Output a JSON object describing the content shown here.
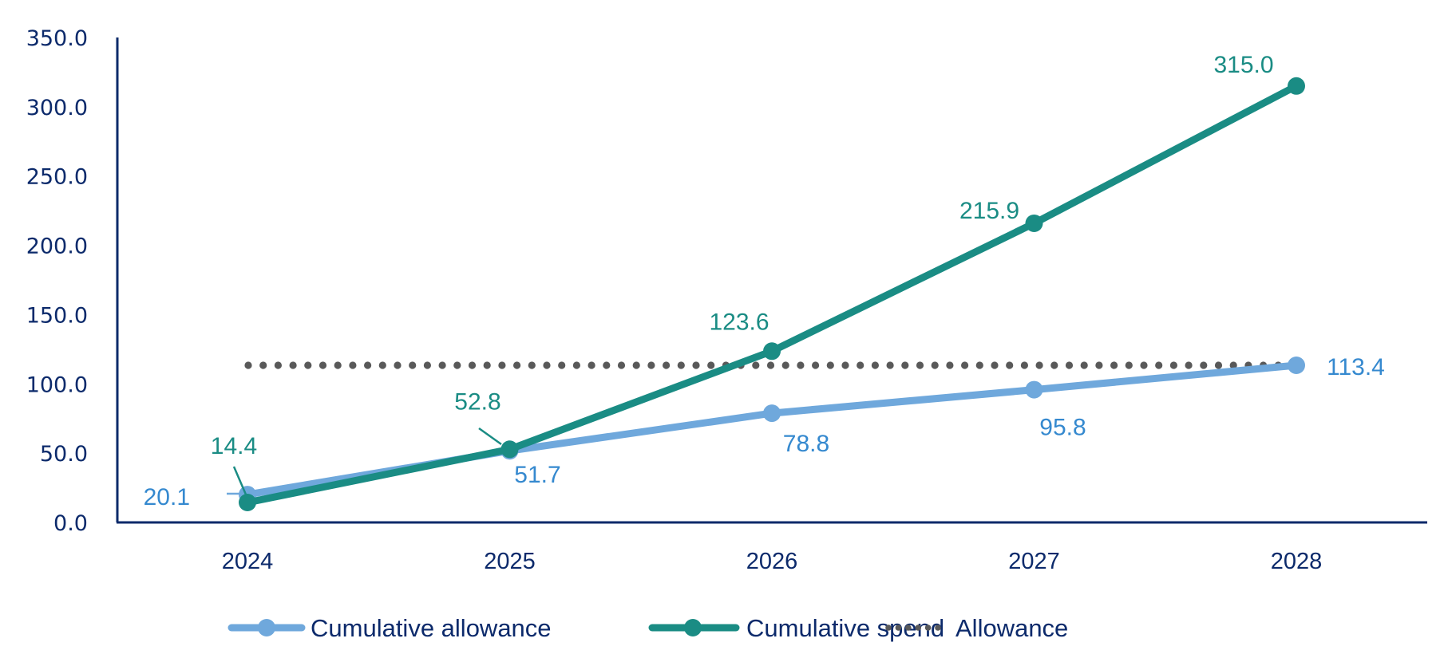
{
  "chart_data": {
    "type": "line",
    "title": "",
    "xlabel": "",
    "ylabel": "",
    "categories": [
      "2024",
      "2025",
      "2026",
      "2027",
      "2028"
    ],
    "ylim": [
      0,
      350
    ],
    "yticks": [
      "0.0",
      "50.0",
      "100.0",
      "150.0",
      "200.0",
      "250.0",
      "300.0",
      "350.0"
    ],
    "ytick_values": [
      0,
      50,
      100,
      150,
      200,
      250,
      300,
      350
    ],
    "grid": false,
    "legend_position": "bottom",
    "series": [
      {
        "name": "Cumulative allowance",
        "style": "solid-marker",
        "color": "#6FA8DC",
        "label_color": "#3589CF",
        "values": [
          20.1,
          51.7,
          78.8,
          95.8,
          113.4
        ],
        "labels": [
          "20.1",
          "51.7",
          "78.8",
          "95.8",
          "113.4"
        ]
      },
      {
        "name": "Cumulative spend",
        "style": "solid-marker",
        "color": "#1A8C84",
        "label_color": "#1A8C84",
        "values": [
          14.4,
          52.8,
          123.6,
          215.9,
          315.0
        ],
        "labels": [
          "14.4",
          "52.8",
          "123.6",
          "215.9",
          "315.0"
        ]
      },
      {
        "name": "Allowance",
        "style": "dotted",
        "color": "#595959",
        "values": [
          113.4,
          113.4,
          113.4,
          113.4,
          113.4
        ]
      }
    ]
  },
  "legend": {
    "items": [
      "Cumulative allowance",
      "Cumulative spend",
      "Allowance"
    ]
  },
  "colors": {
    "axis": "#0B2A6A",
    "text": "#0C2A6B"
  }
}
